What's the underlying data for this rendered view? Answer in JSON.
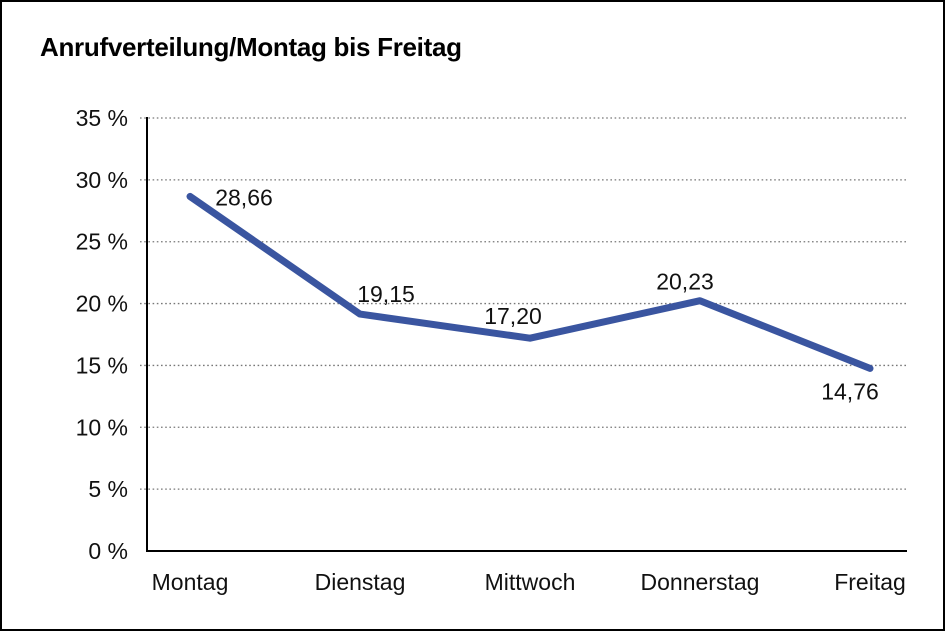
{
  "chart_data": {
    "type": "line",
    "title": "Anrufverteilung/Montag bis Freitag",
    "categories": [
      "Montag",
      "Dienstag",
      "Mittwoch",
      "Donnerstag",
      "Freitag"
    ],
    "series": [
      {
        "name": "Anrufverteilung",
        "values": [
          28.66,
          19.15,
          17.2,
          20.23,
          14.76
        ]
      }
    ],
    "data_labels": [
      "28,66",
      "19,15",
      "17,20",
      "20,23",
      "14,76"
    ],
    "y_ticks": [
      {
        "value": 0,
        "label": "0 %"
      },
      {
        "value": 5,
        "label": "5 %"
      },
      {
        "value": 10,
        "label": "10 %"
      },
      {
        "value": 15,
        "label": "15 %"
      },
      {
        "value": 20,
        "label": "20 %"
      },
      {
        "value": 25,
        "label": "25 %"
      },
      {
        "value": 30,
        "label": "30 %"
      },
      {
        "value": 35,
        "label": "35 %"
      }
    ],
    "ylim": [
      0,
      35
    ],
    "xlabel": "",
    "ylabel": "",
    "grid": "horizontal-dotted",
    "legend": "none",
    "line_color": "#3A55A0",
    "axis_color": "#000000",
    "grid_color": "#777777",
    "text_color": "#111111",
    "background_color": "#FFFFFF"
  }
}
